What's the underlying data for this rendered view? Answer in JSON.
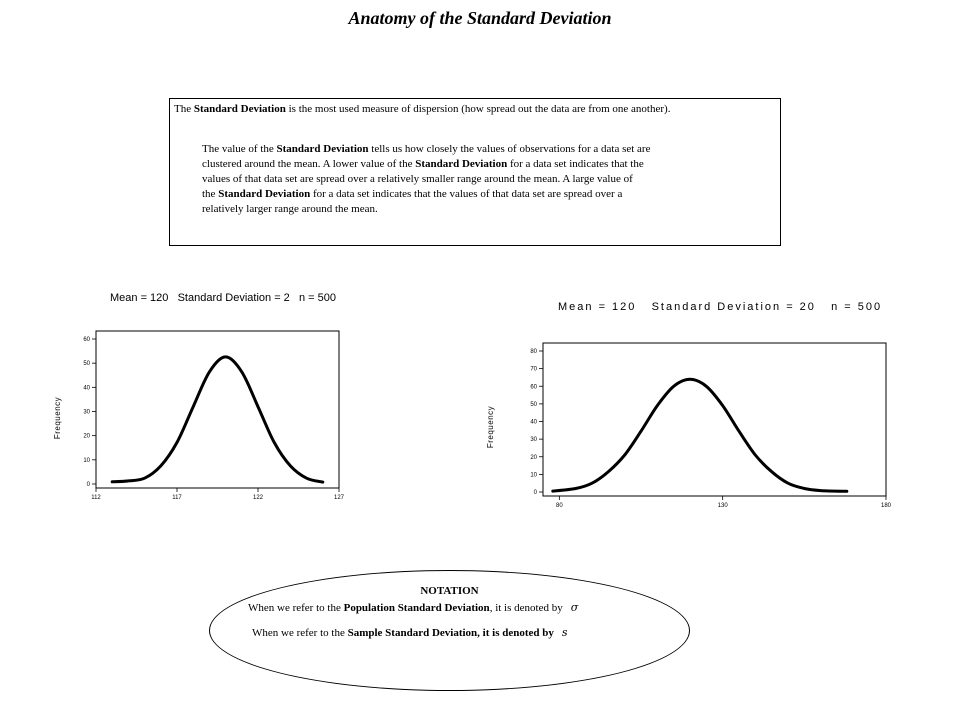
{
  "title": "Anatomy of the Standard Deviation",
  "definition": {
    "intro_pre": "The ",
    "intro_bold": "Standard Deviation",
    "intro_post": " is the most used measure of dispersion (how spread out the data are from one another).",
    "detail": [
      {
        "pre": "The value of the ",
        "bold": "Standard Deviation",
        "post": " tells us how closely the values of observations for a data set are"
      },
      {
        "pre": "clustered around the mean.  A lower value of the ",
        "bold": "Standard Deviation",
        "post": " for a data set indicates that the"
      },
      {
        "pre": "values of that data set are spread over a relatively smaller range around the mean.  A large value of",
        "bold": "",
        "post": ""
      },
      {
        "pre": "the ",
        "bold": "Standard Deviation",
        "post": " for a data set indicates that the values of that data set are spread over a"
      },
      {
        "pre": "relatively larger range around the mean.",
        "bold": "",
        "post": ""
      }
    ]
  },
  "chart_data": [
    {
      "type": "line",
      "title": "Mean = 120   Standard Deviation = 2   n = 500",
      "xlabel": "",
      "ylabel": "Frequency",
      "xlim": [
        112,
        127
      ],
      "ylim": [
        0,
        60
      ],
      "xticks": [
        112,
        117,
        122,
        127
      ],
      "yticks": [
        0,
        10,
        20,
        30,
        40,
        50,
        60
      ],
      "grid": false,
      "series": [
        {
          "values": [
            {
              "x": 113,
              "y": 0.9
            },
            {
              "x": 114,
              "y": 1.3
            },
            {
              "x": 115,
              "y": 2.4
            },
            {
              "x": 116,
              "y": 7.5
            },
            {
              "x": 117,
              "y": 17.2
            },
            {
              "x": 118,
              "y": 32.0
            },
            {
              "x": 119,
              "y": 46.4
            },
            {
              "x": 120,
              "y": 52.6
            },
            {
              "x": 121,
              "y": 46.4
            },
            {
              "x": 122,
              "y": 32.0
            },
            {
              "x": 123,
              "y": 17.2
            },
            {
              "x": 124,
              "y": 7.5
            },
            {
              "x": 125,
              "y": 2.4
            },
            {
              "x": 126,
              "y": 0.8
            }
          ]
        }
      ]
    },
    {
      "type": "line",
      "title": "Mean = 120   Standard Deviation = 20   n = 500",
      "xlabel": "",
      "ylabel": "Frequency",
      "xlim": [
        75,
        180
      ],
      "ylim": [
        0,
        80
      ],
      "xticks": [
        80,
        130,
        180
      ],
      "yticks": [
        0,
        10,
        20,
        30,
        40,
        50,
        60,
        70,
        80
      ],
      "grid": false,
      "series": [
        {
          "values": [
            {
              "x": 78,
              "y": 0.5
            },
            {
              "x": 85,
              "y": 2.0
            },
            {
              "x": 90,
              "y": 5.0
            },
            {
              "x": 95,
              "y": 11.5
            },
            {
              "x": 100,
              "y": 21.0
            },
            {
              "x": 105,
              "y": 34.5
            },
            {
              "x": 110,
              "y": 49.0
            },
            {
              "x": 115,
              "y": 60.0
            },
            {
              "x": 120,
              "y": 64.0
            },
            {
              "x": 125,
              "y": 60.0
            },
            {
              "x": 130,
              "y": 49.0
            },
            {
              "x": 135,
              "y": 34.5
            },
            {
              "x": 140,
              "y": 21.0
            },
            {
              "x": 145,
              "y": 11.5
            },
            {
              "x": 150,
              "y": 5.0
            },
            {
              "x": 155,
              "y": 2.0
            },
            {
              "x": 160,
              "y": 0.8
            },
            {
              "x": 168,
              "y": 0.4
            }
          ]
        }
      ]
    }
  ],
  "notation": {
    "heading": "NOTATION",
    "population_pre": "When we refer to the ",
    "population_bold": "Population Standard Deviation",
    "population_post": ", it is  denoted by",
    "population_symbol": "σ",
    "sample_pre": "When we refer to the ",
    "sample_bold": "Sample Standard Deviation, it is denoted by",
    "sample_symbol": "s"
  }
}
